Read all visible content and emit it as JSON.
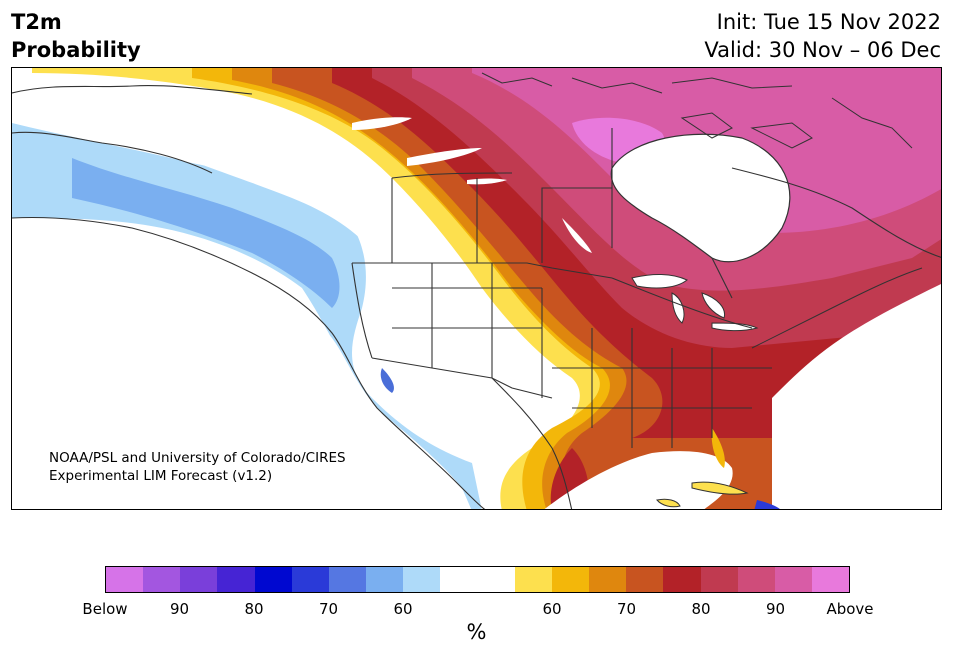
{
  "title": {
    "line1": "T2m",
    "line2": "Probability"
  },
  "header": {
    "init": "Init: Tue 15 Nov 2022",
    "valid": "Valid: 30 Nov – 06 Dec"
  },
  "credit": {
    "line1": "NOAA/PSL and University of Colorado/CIRES",
    "line2": "Experimental LIM Forecast (v1.2)"
  },
  "colorbar": {
    "colors": [
      "#d673e8",
      "#a356e0",
      "#7a3fda",
      "#4624d4",
      "#0008d0",
      "#2a3ad8",
      "#5577e2",
      "#7aaff0",
      "#aedaf9",
      "#ffffff",
      "#ffffff",
      "#fde04e",
      "#f3b70a",
      "#df870e",
      "#c85420",
      "#b32228",
      "#c03a50",
      "#cf4c7a",
      "#d85ca6",
      "#e879dc"
    ],
    "tick_labels": [
      "Below",
      "90",
      "80",
      "70",
      "60",
      "60",
      "70",
      "80",
      "90",
      "Above"
    ],
    "unit": "%"
  }
}
